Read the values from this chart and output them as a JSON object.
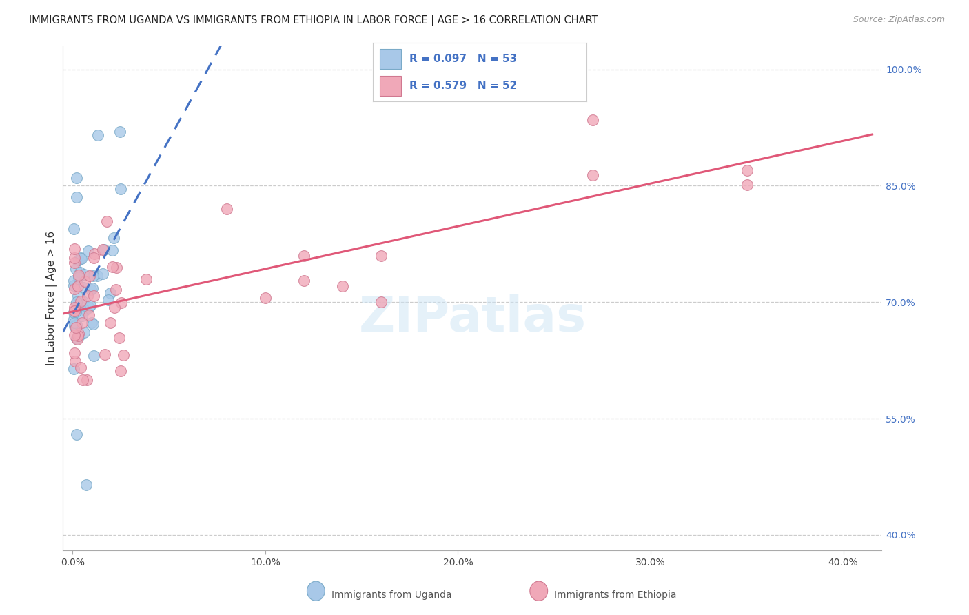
{
  "title": "IMMIGRANTS FROM UGANDA VS IMMIGRANTS FROM ETHIOPIA IN LABOR FORCE | AGE > 16 CORRELATION CHART",
  "source": "Source: ZipAtlas.com",
  "ylabel": "In Labor Force | Age > 16",
  "ylim": [
    0.38,
    1.03
  ],
  "xlim": [
    -0.005,
    0.42
  ],
  "uganda_color": "#a8c8e8",
  "uganda_edge_color": "#7aaac8",
  "ethiopia_color": "#f0a8b8",
  "ethiopia_edge_color": "#d07890",
  "uganda_line_color": "#4472c4",
  "ethiopia_line_color": "#e05878",
  "uganda_R": 0.097,
  "uganda_N": 53,
  "ethiopia_R": 0.579,
  "ethiopia_N": 52,
  "watermark": "ZIPatlas",
  "legend_label_uganda": "Immigrants from Uganda",
  "legend_label_ethiopia": "Immigrants from Ethiopia",
  "ytick_vals": [
    1.0,
    0.85,
    0.7,
    0.55,
    0.4
  ],
  "ytick_labels": [
    "100.0%",
    "85.0%",
    "70.0%",
    "55.0%",
    "40.0%"
  ],
  "xtick_vals": [
    0.0,
    0.1,
    0.2,
    0.3,
    0.4
  ],
  "xtick_labels": [
    "0.0%",
    "10.0%",
    "20.0%",
    "30.0%",
    "40.0%"
  ],
  "grid_color": "#cccccc",
  "spine_color": "#aaaaaa"
}
